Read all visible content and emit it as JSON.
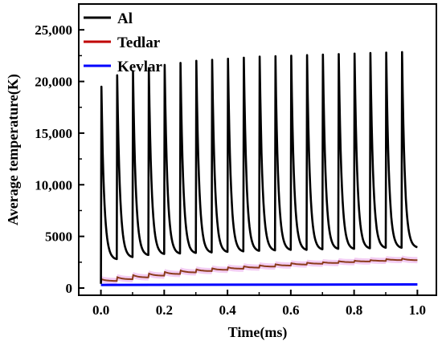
{
  "chart_data": {
    "type": "line",
    "xlabel": "Time(ms)",
    "ylabel": "Average temperature(K)",
    "xlim": [
      -0.07,
      1.06
    ],
    "ylim": [
      -700,
      27500
    ],
    "x_ticks": [
      0.0,
      0.2,
      0.4,
      0.6,
      0.8,
      1.0
    ],
    "x_tick_labels": [
      "0.0",
      "0.2",
      "0.4",
      "0.6",
      "0.8",
      "1.0"
    ],
    "y_ticks": [
      0,
      5000,
      10000,
      15000,
      20000,
      25000
    ],
    "y_tick_labels": [
      "0",
      "5000",
      "10,000",
      "15,000",
      "20,000",
      "25,000"
    ],
    "legend_position": "top-left",
    "grid": false,
    "series": [
      {
        "name": "Al",
        "color": "#000000",
        "pulse_period_ms": 0.05,
        "pulse_times": [
          0.0,
          0.05,
          0.1,
          0.15,
          0.2,
          0.25,
          0.3,
          0.35,
          0.4,
          0.45,
          0.5,
          0.55,
          0.6,
          0.65,
          0.7,
          0.75,
          0.8,
          0.85,
          0.9,
          0.95
        ],
        "peak_values": [
          19500,
          20600,
          21000,
          21300,
          21600,
          21800,
          22000,
          22100,
          22200,
          22300,
          22400,
          22450,
          22500,
          22550,
          22600,
          22650,
          22700,
          22750,
          22800,
          22850
        ],
        "trough_values": [
          400,
          2800,
          3000,
          3200,
          3300,
          3350,
          3400,
          3450,
          3500,
          3550,
          3600,
          3650,
          3700,
          3700,
          3750,
          3800,
          3800,
          3850,
          3900,
          3900,
          3950
        ]
      },
      {
        "name": "Tedlar",
        "color": "#c00000",
        "band_color": "#f0c0f0",
        "pulse_times": [
          0.0,
          0.05,
          0.1,
          0.15,
          0.2,
          0.25,
          0.3,
          0.35,
          0.4,
          0.45,
          0.5,
          0.55,
          0.6,
          0.65,
          0.7,
          0.75,
          0.8,
          0.85,
          0.9,
          0.95
        ],
        "start_value": 550,
        "peak_values": [
          850,
          1050,
          1250,
          1400,
          1550,
          1700,
          1800,
          1900,
          2000,
          2100,
          2200,
          2300,
          2400,
          2450,
          2500,
          2600,
          2650,
          2700,
          2800,
          2850
        ],
        "end_value": 2700
      },
      {
        "name": "Kevlar",
        "color": "#0000ff",
        "x": [
          0.0,
          1.0
        ],
        "y": [
          300,
          350
        ]
      }
    ]
  }
}
